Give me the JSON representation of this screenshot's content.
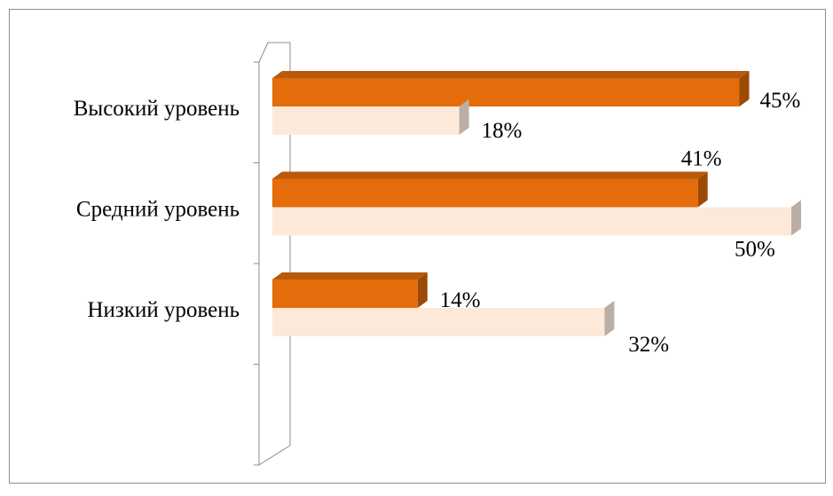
{
  "chart_data": {
    "type": "bar",
    "orientation": "horizontal",
    "style": "3d",
    "categories": [
      "Высокий уровень",
      "Средний уровень",
      "Низкий уровень"
    ],
    "series": [
      {
        "values": [
          45,
          41,
          14
        ],
        "labels": [
          "45%",
          "41%",
          "14%"
        ],
        "color": "#e46c0a"
      },
      {
        "values": [
          18,
          50,
          32
        ],
        "labels": [
          "18%",
          "50%",
          "32%"
        ],
        "color": "#fde9d9"
      }
    ],
    "xlim": [
      0,
      50
    ],
    "grid": false,
    "legend": "none",
    "title": "",
    "xlabel": "",
    "ylabel": ""
  }
}
